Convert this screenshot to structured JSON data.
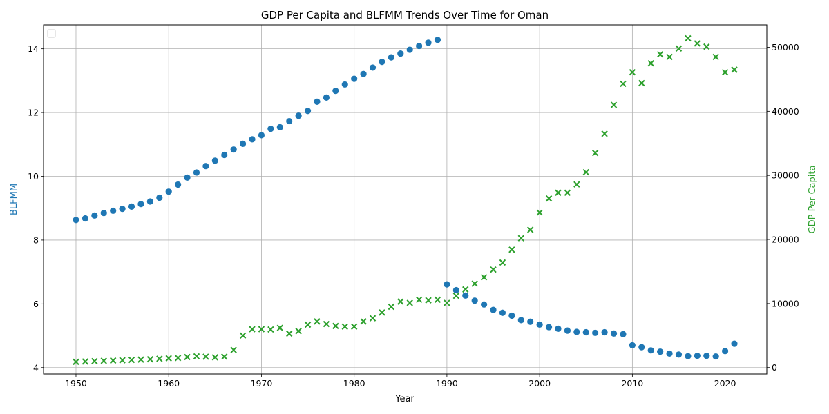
{
  "chart_data": {
    "type": "scatter",
    "title": "GDP Per Capita and BLFMM Trends Over Time for Oman",
    "xlabel": "Year",
    "ylabel_left": "BLFMM",
    "ylabel_right": "GDP Per Capita",
    "xlim": [
      1946.5,
      2024.5
    ],
    "ylim_left": [
      3.8,
      14.75
    ],
    "ylim_right": [
      -1000,
      53500
    ],
    "x_ticks": [
      1950,
      1960,
      1970,
      1980,
      1990,
      2000,
      2010,
      2020
    ],
    "y_ticks_left": [
      4,
      6,
      8,
      10,
      12,
      14
    ],
    "y_ticks_right": [
      0,
      10000,
      20000,
      30000,
      40000,
      50000
    ],
    "grid": true,
    "legend": "top-left (empty)",
    "colors": {
      "blfmm": "#1f77b4",
      "gdp": "#2ca02c"
    },
    "series": [
      {
        "key": "blfmm",
        "axis": "left",
        "marker": "circle",
        "x": [
          1950,
          1951,
          1952,
          1953,
          1954,
          1955,
          1956,
          1957,
          1958,
          1959,
          1960,
          1961,
          1962,
          1963,
          1964,
          1965,
          1966,
          1967,
          1968,
          1969,
          1970,
          1971,
          1972,
          1973,
          1974,
          1975,
          1976,
          1977,
          1978,
          1979,
          1980,
          1981,
          1982,
          1983,
          1984,
          1985,
          1986,
          1987,
          1988,
          1989,
          1990,
          1991,
          1992,
          1993,
          1994,
          1995,
          1996,
          1997,
          1998,
          1999,
          2000,
          2001,
          2002,
          2003,
          2004,
          2005,
          2006,
          2007,
          2008,
          2009,
          2010,
          2011,
          2012,
          2013,
          2014,
          2015,
          2016,
          2017,
          2018,
          2019,
          2020,
          2021
        ],
        "values": [
          8.63,
          8.68,
          8.77,
          8.85,
          8.92,
          8.98,
          9.05,
          9.13,
          9.21,
          9.33,
          9.52,
          9.74,
          9.96,
          10.12,
          10.32,
          10.49,
          10.67,
          10.84,
          11.02,
          11.16,
          11.29,
          11.49,
          11.54,
          11.73,
          11.9,
          12.05,
          12.34,
          12.47,
          12.68,
          12.88,
          13.06,
          13.21,
          13.41,
          13.59,
          13.73,
          13.85,
          13.97,
          14.09,
          14.19,
          14.28,
          6.61,
          6.43,
          6.26,
          6.1,
          5.98,
          5.81,
          5.72,
          5.63,
          5.49,
          5.44,
          5.35,
          5.27,
          5.22,
          5.16,
          5.12,
          5.11,
          5.09,
          5.11,
          5.07,
          5.05,
          4.7,
          4.64,
          4.54,
          4.5,
          4.44,
          4.41,
          4.36,
          4.37,
          4.37,
          4.35,
          4.52,
          4.75
        ]
      },
      {
        "key": "gdp",
        "axis": "right",
        "marker": "x",
        "x": [
          1950,
          1951,
          1952,
          1953,
          1954,
          1955,
          1956,
          1957,
          1958,
          1959,
          1960,
          1961,
          1962,
          1963,
          1964,
          1965,
          1966,
          1967,
          1968,
          1969,
          1970,
          1971,
          1972,
          1973,
          1974,
          1975,
          1976,
          1977,
          1978,
          1979,
          1980,
          1981,
          1982,
          1983,
          1984,
          1985,
          1986,
          1987,
          1988,
          1989,
          1990,
          1991,
          1992,
          1993,
          1994,
          1995,
          1996,
          1997,
          1998,
          1999,
          2000,
          2001,
          2002,
          2003,
          2004,
          2005,
          2006,
          2007,
          2008,
          2009,
          2010,
          2011,
          2012,
          2013,
          2014,
          2015,
          2016,
          2017,
          2018,
          2019,
          2020,
          2021
        ],
        "values": [
          900,
          950,
          1000,
          1050,
          1100,
          1150,
          1200,
          1250,
          1300,
          1380,
          1450,
          1500,
          1650,
          1750,
          1700,
          1600,
          1700,
          2750,
          5000,
          6000,
          6000,
          5950,
          6200,
          5300,
          5700,
          6700,
          7200,
          6800,
          6500,
          6400,
          6400,
          7200,
          7700,
          8600,
          9500,
          10300,
          10100,
          10600,
          10500,
          10600,
          10100,
          11200,
          12200,
          13100,
          14100,
          15300,
          16400,
          18400,
          20200,
          21500,
          24200,
          26400,
          27300,
          27300,
          28600,
          30500,
          33500,
          36500,
          41000,
          44300,
          46100,
          44400,
          47500,
          48900,
          48500,
          49800,
          51400,
          50600,
          50100,
          48500,
          46100,
          46500
        ]
      }
    ]
  }
}
